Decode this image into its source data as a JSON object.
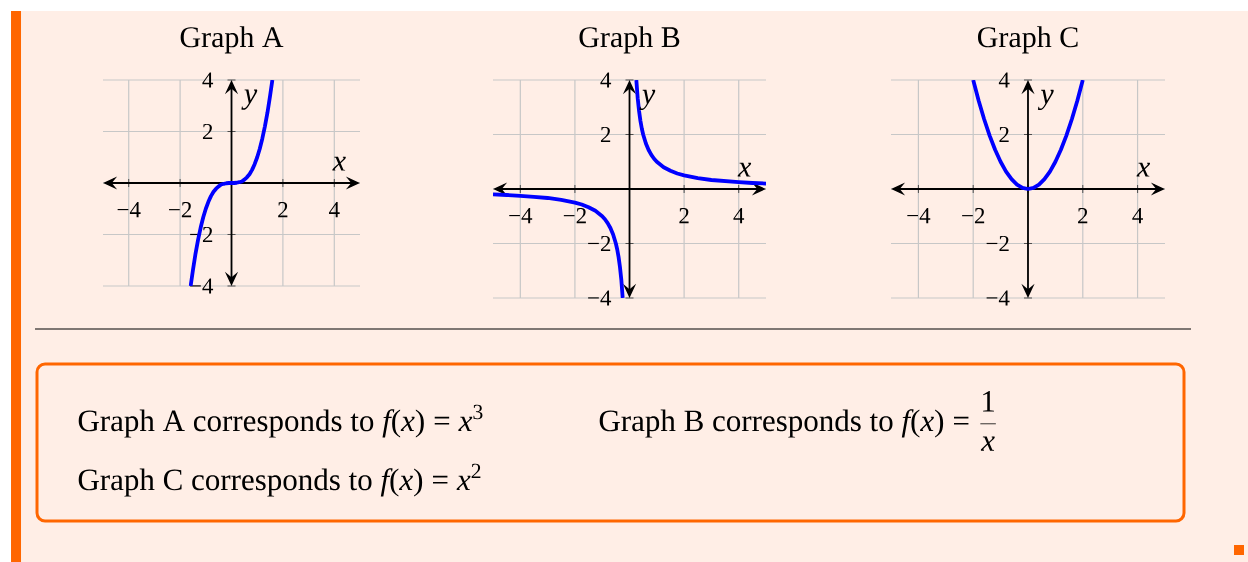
{
  "chart_data": [
    {
      "type": "line",
      "title": "Graph A",
      "xlabel": "x",
      "ylabel": "y",
      "xlim": [
        -5,
        5
      ],
      "ylim": [
        -4,
        4
      ],
      "xticks": [
        {
          "value": -4,
          "label": "−4"
        },
        {
          "value": -2,
          "label": "−2"
        },
        {
          "value": 0,
          "label": null
        },
        2,
        4
      ],
      "yticks": [
        {
          "value": -4,
          "label": "−4"
        },
        {
          "value": -2,
          "label": "−2"
        },
        {
          "value": 0,
          "label": null
        },
        2,
        4
      ],
      "grid": true,
      "line_style": "solid",
      "color": "#0000ff",
      "x": [
        -1.59,
        -1.5,
        -1.4,
        -1.3,
        -1.2,
        -1.1,
        -1,
        -0.9,
        -0.8,
        -0.7,
        -0.6,
        -0.5,
        -0.4,
        -0.3,
        -0.2,
        -0.1,
        0,
        0.1,
        0.2,
        0.3,
        0.4,
        0.5,
        0.6,
        0.7,
        0.8,
        0.9,
        1,
        1.1,
        1.2,
        1.3,
        1.4,
        1.5,
        1.59
      ],
      "values": [
        -4,
        -3.38,
        -2.74,
        -2.2,
        -1.73,
        -1.33,
        -1,
        -0.73,
        -0.51,
        -0.34,
        -0.22,
        -0.13,
        -0.06,
        -0.03,
        -0.01,
        0,
        0,
        0,
        0.01,
        0.03,
        0.06,
        0.13,
        0.22,
        0.34,
        0.51,
        0.73,
        1,
        1.33,
        1.73,
        2.2,
        2.74,
        3.38,
        4
      ]
    },
    {
      "type": "line",
      "title": "Graph B",
      "xlabel": "x",
      "ylabel": "y",
      "xlim": [
        -5,
        5
      ],
      "ylim": [
        -4,
        4
      ],
      "xticks": [
        {
          "value": -4,
          "label": "−4"
        },
        {
          "value": -2,
          "label": "−2"
        },
        {
          "value": 0,
          "label": null
        },
        2,
        4
      ],
      "yticks": [
        {
          "value": -4,
          "label": "−4"
        },
        {
          "value": -2,
          "label": "−2"
        },
        {
          "value": 0,
          "label": null
        },
        2,
        4
      ],
      "grid": true,
      "line_style": "solid",
      "color": "#0000ff",
      "x": [
        -5,
        -4.5,
        -4,
        -3.5,
        -3,
        -2.5,
        -2,
        -1.75,
        -1.5,
        -1.25,
        -1,
        -0.9,
        -0.8,
        -0.7,
        -0.6,
        -0.5,
        -0.45,
        -0.4,
        -0.35,
        -0.3,
        -0.25,
        0,
        0.25,
        0.3,
        0.35,
        0.4,
        0.45,
        0.5,
        0.6,
        0.7,
        0.8,
        0.9,
        1,
        1.25,
        1.5,
        1.75,
        2,
        2.5,
        3,
        3.5,
        4,
        4.5,
        5
      ],
      "values": [
        -0.2,
        -0.22,
        -0.25,
        -0.29,
        -0.33,
        -0.4,
        -0.5,
        -0.57,
        -0.67,
        -0.8,
        -1,
        -1.11,
        -1.25,
        -1.43,
        -1.67,
        -2,
        -2.22,
        -2.5,
        -2.86,
        -3.33,
        -4,
        null,
        4,
        3.33,
        2.86,
        2.5,
        2.22,
        2,
        1.67,
        1.43,
        1.25,
        1.11,
        1,
        0.8,
        0.67,
        0.57,
        0.5,
        0.4,
        0.33,
        0.29,
        0.25,
        0.22,
        0.2
      ]
    },
    {
      "type": "line",
      "title": "Graph C",
      "xlabel": "x",
      "ylabel": "y",
      "xlim": [
        -5,
        5
      ],
      "ylim": [
        -4,
        4
      ],
      "xticks": [
        {
          "value": -4,
          "label": "−4"
        },
        {
          "value": -2,
          "label": "−2"
        },
        {
          "value": 0,
          "label": null
        },
        2,
        4
      ],
      "yticks": [
        {
          "value": -4,
          "label": "−4"
        },
        {
          "value": -2,
          "label": "−2"
        },
        {
          "value": 0,
          "label": null
        },
        2,
        4
      ],
      "grid": true,
      "line_style": "solid",
      "color": "#0000ff",
      "x": [
        -2,
        -1.8,
        -1.6,
        -1.4,
        -1.2,
        -1,
        -0.8,
        -0.6,
        -0.4,
        -0.2,
        0,
        0.2,
        0.4,
        0.6,
        0.8,
        1,
        1.2,
        1.4,
        1.6,
        1.8,
        2
      ],
      "values": [
        4,
        3.24,
        2.56,
        1.96,
        1.44,
        1,
        0.64,
        0.36,
        0.16,
        0.04,
        0,
        0.04,
        0.16,
        0.36,
        0.64,
        1,
        1.44,
        1.96,
        2.56,
        3.24,
        4
      ]
    },
    {
      "type": "other",
      "annotations": [
        "\\mbox{Graph A corresponds to }f(x)=x^{3}",
        "\\mbox{Graph B corresponds to }f(x)=\\frac{1}{x}",
        "\\mbox{Graph C corresponds to }f(x)=x^{2}"
      ]
    }
  ]
}
